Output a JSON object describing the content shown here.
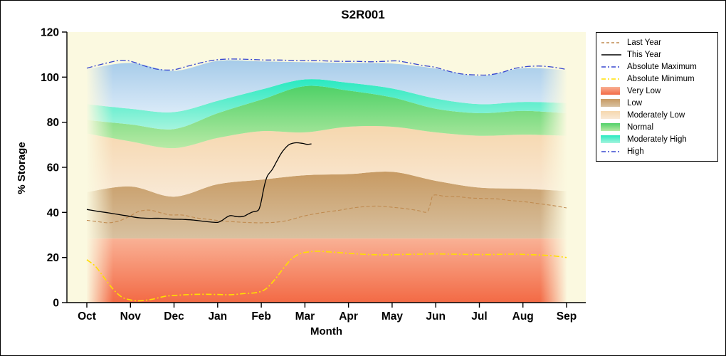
{
  "colors": {
    "plot_bg": "#fbf9e0",
    "axis": "#000000"
  },
  "chart_data": {
    "type": "area",
    "title": "S2R001",
    "xlabel": "Month",
    "ylabel": "% Storage",
    "ylim": [
      0,
      120
    ],
    "y_ticks": [
      0,
      20,
      40,
      60,
      80,
      100,
      120
    ],
    "categories": [
      "Oct",
      "Nov",
      "Dec",
      "Jan",
      "Feb",
      "Mar",
      "Apr",
      "May",
      "Jun",
      "Jul",
      "Aug",
      "Sep"
    ],
    "bands": [
      {
        "name": "Very Low",
        "colors": [
          "#f9b195",
          "#f36a45"
        ],
        "top": [
          28.5,
          28.5,
          28.5,
          28.5,
          28.5,
          28.5,
          28.5,
          28.5,
          28.5,
          28.5,
          28.5,
          28.5
        ]
      },
      {
        "name": "Low",
        "colors": [
          "#c79a63",
          "#d8c1a0"
        ],
        "top": [
          49,
          51.5,
          47,
          52.5,
          54.5,
          56.5,
          57,
          58,
          54,
          51,
          50.5,
          49.5
        ]
      },
      {
        "name": "Moderately Low",
        "colors": [
          "#f6d7ae",
          "#f9e9d6"
        ],
        "top": [
          75,
          71.5,
          68.5,
          73,
          76,
          75.5,
          78,
          78,
          75.5,
          74,
          74.5,
          74
        ]
      },
      {
        "name": "Normal",
        "colors": [
          "#4fd167",
          "#b8eaa6"
        ],
        "top": [
          81,
          79,
          77,
          84,
          90,
          96,
          94,
          91,
          86,
          84,
          85,
          84
        ]
      },
      {
        "name": "Moderately High",
        "colors": [
          "#29e9c0",
          "#a5f4de"
        ],
        "top": [
          88,
          86,
          84.5,
          89.5,
          94.5,
          99,
          97.5,
          95,
          90.5,
          88,
          89,
          88.5
        ]
      },
      {
        "name": "High",
        "colors": [
          "#a6cbe9",
          "#d9eaf8"
        ],
        "top": [
          103.5,
          106.3,
          102.8,
          107.2,
          107,
          106.6,
          106.3,
          106,
          103.8,
          100.5,
          104,
          103
        ]
      }
    ],
    "lines": [
      {
        "name": "Last Year",
        "style": "dashed",
        "color": "#bf8a4f",
        "width": 1.1,
        "points": [
          [
            0,
            36.5
          ],
          [
            0.25,
            35.9
          ],
          [
            0.5,
            35.4
          ],
          [
            0.75,
            36.3
          ],
          [
            1.0,
            38.5
          ],
          [
            1.2,
            40.5
          ],
          [
            1.45,
            41.0
          ],
          [
            1.7,
            39.8
          ],
          [
            1.9,
            38.9
          ],
          [
            2.2,
            38.8
          ],
          [
            2.5,
            37.6
          ],
          [
            2.8,
            36.9
          ],
          [
            3.1,
            36.2
          ],
          [
            3.4,
            35.8
          ],
          [
            3.7,
            35.5
          ],
          [
            4.0,
            35.4
          ],
          [
            4.3,
            35.6
          ],
          [
            4.6,
            36.4
          ],
          [
            4.9,
            38.0
          ],
          [
            5.2,
            39.3
          ],
          [
            5.5,
            40.2
          ],
          [
            5.8,
            41.0
          ],
          [
            6.1,
            42.0
          ],
          [
            6.4,
            42.6
          ],
          [
            6.7,
            42.8
          ],
          [
            7.0,
            42.3
          ],
          [
            7.3,
            41.7
          ],
          [
            7.6,
            40.8
          ],
          [
            7.8,
            40.2
          ],
          [
            7.88,
            44.0
          ],
          [
            7.95,
            47.6
          ],
          [
            8.2,
            47.2
          ],
          [
            8.5,
            47.0
          ],
          [
            8.8,
            46.4
          ],
          [
            9.1,
            46.2
          ],
          [
            9.4,
            46.0
          ],
          [
            9.7,
            45.3
          ],
          [
            10.0,
            44.8
          ],
          [
            10.4,
            43.8
          ],
          [
            10.7,
            43.0
          ],
          [
            11.0,
            42.0
          ]
        ]
      },
      {
        "name": "This Year",
        "style": "solid",
        "color": "#000000",
        "width": 1.3,
        "points": [
          [
            0,
            41.3
          ],
          [
            0.25,
            40.5
          ],
          [
            0.5,
            39.8
          ],
          [
            0.75,
            39.0
          ],
          [
            1.0,
            38.2
          ],
          [
            1.2,
            37.6
          ],
          [
            1.45,
            37.4
          ],
          [
            1.7,
            37.4
          ],
          [
            1.95,
            37.0
          ],
          [
            2.2,
            36.9
          ],
          [
            2.45,
            36.6
          ],
          [
            2.7,
            36.0
          ],
          [
            2.85,
            35.7
          ],
          [
            3.0,
            35.6
          ],
          [
            3.1,
            36.4
          ],
          [
            3.2,
            37.8
          ],
          [
            3.3,
            38.6
          ],
          [
            3.45,
            38.1
          ],
          [
            3.6,
            38.3
          ],
          [
            3.7,
            39.3
          ],
          [
            3.8,
            40.2
          ],
          [
            3.9,
            40.6
          ],
          [
            3.95,
            41.5
          ],
          [
            4.0,
            45.0
          ],
          [
            4.05,
            50.0
          ],
          [
            4.1,
            54.0
          ],
          [
            4.15,
            56.5
          ],
          [
            4.25,
            59.0
          ],
          [
            4.35,
            62.5
          ],
          [
            4.45,
            66.0
          ],
          [
            4.55,
            68.5
          ],
          [
            4.65,
            70.2
          ],
          [
            4.8,
            70.9
          ],
          [
            4.95,
            70.6
          ],
          [
            5.05,
            70.2
          ],
          [
            5.15,
            70.4
          ]
        ]
      },
      {
        "name": "Absolute Maximum",
        "style": "dashdot",
        "color": "#3646cf",
        "width": 1.3,
        "points": [
          [
            0,
            104
          ],
          [
            0.4,
            106
          ],
          [
            0.7,
            107.3
          ],
          [
            0.9,
            107.4
          ],
          [
            1.1,
            106.5
          ],
          [
            1.4,
            104.5
          ],
          [
            1.7,
            103.3
          ],
          [
            2.0,
            103.3
          ],
          [
            2.3,
            104.8
          ],
          [
            2.6,
            106.3
          ],
          [
            2.9,
            107.5
          ],
          [
            3.2,
            108
          ],
          [
            3.5,
            108
          ],
          [
            3.8,
            107.8
          ],
          [
            4.1,
            107.6
          ],
          [
            4.4,
            107.6
          ],
          [
            4.7,
            107.4
          ],
          [
            5.0,
            107.3
          ],
          [
            5.3,
            107.3
          ],
          [
            5.6,
            107.1
          ],
          [
            5.9,
            107
          ],
          [
            6.2,
            107
          ],
          [
            6.5,
            106.8
          ],
          [
            6.8,
            107
          ],
          [
            7.1,
            107.2
          ],
          [
            7.4,
            106.3
          ],
          [
            7.7,
            105.2
          ],
          [
            8.0,
            104.3
          ],
          [
            8.3,
            102.6
          ],
          [
            8.6,
            101.4
          ],
          [
            8.9,
            101
          ],
          [
            9.2,
            101
          ],
          [
            9.5,
            102
          ],
          [
            9.8,
            103.8
          ],
          [
            10.1,
            104.7
          ],
          [
            10.4,
            104.9
          ],
          [
            10.7,
            104.4
          ],
          [
            11.0,
            103.4
          ]
        ]
      },
      {
        "name": "Absolute Minimum",
        "style": "dashdot",
        "color": "#ffdf00",
        "width": 1.6,
        "points": [
          [
            0,
            19.0
          ],
          [
            0.2,
            16.0
          ],
          [
            0.4,
            11.0
          ],
          [
            0.6,
            6.0
          ],
          [
            0.8,
            2.5
          ],
          [
            1.0,
            1.2
          ],
          [
            1.2,
            0.8
          ],
          [
            1.5,
            1.5
          ],
          [
            1.8,
            2.8
          ],
          [
            2.1,
            3.3
          ],
          [
            2.4,
            3.6
          ],
          [
            2.7,
            3.7
          ],
          [
            3.0,
            3.6
          ],
          [
            3.3,
            3.5
          ],
          [
            3.6,
            4.0
          ],
          [
            3.9,
            4.5
          ],
          [
            4.1,
            6.0
          ],
          [
            4.3,
            10.0
          ],
          [
            4.5,
            15.0
          ],
          [
            4.7,
            19.5
          ],
          [
            4.9,
            21.8
          ],
          [
            5.1,
            22.5
          ],
          [
            5.3,
            22.8
          ],
          [
            5.6,
            22.4
          ],
          [
            5.9,
            22.0
          ],
          [
            6.2,
            21.6
          ],
          [
            6.5,
            21.3
          ],
          [
            6.8,
            21.2
          ],
          [
            7.1,
            21.3
          ],
          [
            7.4,
            21.4
          ],
          [
            7.7,
            21.5
          ],
          [
            8.0,
            21.6
          ],
          [
            8.3,
            21.5
          ],
          [
            8.6,
            21.4
          ],
          [
            8.9,
            21.3
          ],
          [
            9.2,
            21.3
          ],
          [
            9.5,
            21.4
          ],
          [
            9.8,
            21.5
          ],
          [
            10.1,
            21.3
          ],
          [
            10.4,
            21.1
          ],
          [
            10.7,
            20.7
          ],
          [
            11.0,
            20.0
          ]
        ]
      }
    ]
  },
  "legend": {
    "items": [
      {
        "label": "Last Year",
        "kind": "line",
        "style": "dashed",
        "color": "#bf8a4f"
      },
      {
        "label": "This Year",
        "kind": "line",
        "style": "solid",
        "color": "#000000"
      },
      {
        "label": "Absolute Maximum",
        "kind": "line",
        "style": "dashdot",
        "color": "#3646cf"
      },
      {
        "label": "Absolute Minimum",
        "kind": "line",
        "style": "dashdot",
        "color": "#ffdf00"
      },
      {
        "label": "Very Low",
        "kind": "fill",
        "colors": [
          "#f9b195",
          "#f36a45"
        ]
      },
      {
        "label": "Low",
        "kind": "fill",
        "colors": [
          "#c79a63",
          "#d8c1a0"
        ]
      },
      {
        "label": "Moderately Low",
        "kind": "fill",
        "colors": [
          "#f6d7ae",
          "#f9e9d6"
        ]
      },
      {
        "label": "Normal",
        "kind": "fill",
        "colors": [
          "#4fd167",
          "#b8eaa6"
        ]
      },
      {
        "label": "Moderately High",
        "kind": "fill",
        "colors": [
          "#29e9c0",
          "#a5f4de"
        ]
      },
      {
        "label": "High",
        "kind": "line",
        "style": "dashdot",
        "color": "#3646cf"
      }
    ]
  }
}
